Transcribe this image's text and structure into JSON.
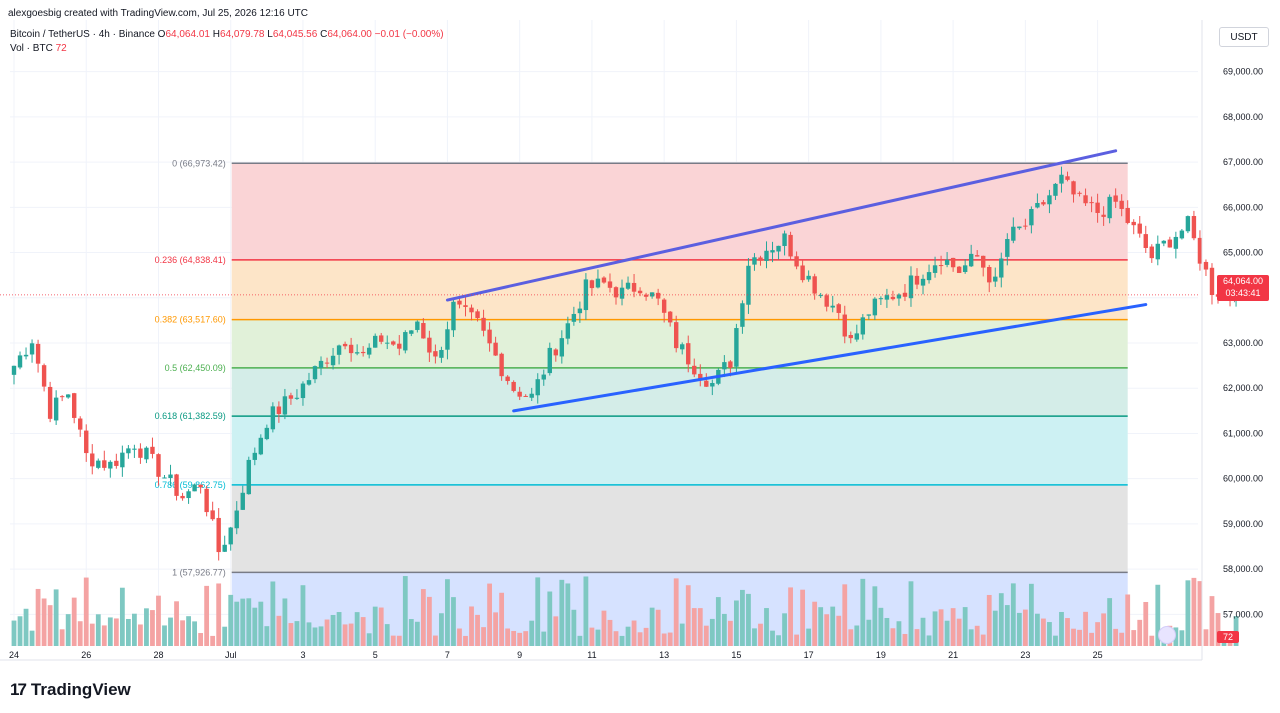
{
  "header": {
    "credit": "alexgoesbig created with TradingView.com, Jul 25, 2026 12:16 UTC"
  },
  "legend": {
    "symbol": "Bitcoin / TetherUS · 4h · Binance",
    "open_label": "O",
    "open": "64,064.01",
    "high_label": "H",
    "high": "64,079.78",
    "low_label": "L",
    "low": "64,045.56",
    "close_label": "C",
    "close": "64,064.00",
    "change": "−0.01 (−0.00%)",
    "volume_label": "Vol · BTC",
    "volume_value": "72"
  },
  "price_axis": {
    "currency": "USDT",
    "current_price": "64,064.00",
    "countdown": "03:43:41",
    "volume_tag": "72"
  },
  "branding": {
    "logo_mark": "17",
    "name": "TradingView"
  },
  "colors": {
    "up": "#26a69a",
    "down": "#ef5350",
    "vol_up": "#7ec8c2",
    "vol_down": "#f4a3a3",
    "trend_upper": "#5b5fe0",
    "trend_lower": "#2962ff",
    "accent": "#2962ff"
  },
  "chart_data": {
    "type": "candlestick",
    "y_axis": {
      "range": [
        56300,
        69700
      ],
      "ticks": [
        57000,
        58000,
        59000,
        60000,
        61000,
        62000,
        63000,
        64000,
        65000,
        66000,
        67000,
        68000,
        69000
      ],
      "tick_labels": [
        "57,000.00",
        "58,000.00",
        "59,000.00",
        "60,000.00",
        "61,000.00",
        "62,000.00",
        "63,000.00",
        "64,000.00",
        "65,000.00",
        "66,000.00",
        "67,000.00",
        "68,000.00",
        "69,000.00"
      ]
    },
    "x_axis": {
      "labels": [
        "24",
        "26",
        "28",
        "Jul",
        "3",
        "5",
        "7",
        "9",
        "11",
        "13",
        "15",
        "17",
        "19",
        "21",
        "23",
        "25"
      ],
      "label_bars": [
        0,
        12,
        24,
        36,
        48,
        60,
        72,
        84,
        96,
        108,
        120,
        132,
        144,
        156,
        168,
        180
      ]
    },
    "fibonacci": {
      "start_bar": 36,
      "end_bar": 185,
      "levels": [
        {
          "ratio": "0",
          "price": 66973.42,
          "label": "0 (66,973.42)",
          "color": "#787b86",
          "fill": "#fad4d6"
        },
        {
          "ratio": "0.236",
          "price": 64838.41,
          "label": "0.236 (64,838.41)",
          "color": "#f23645",
          "fill": "#fde5c8"
        },
        {
          "ratio": "0.382",
          "price": 63517.6,
          "label": "0.382 (63,517.60)",
          "color": "#ff9800",
          "fill": "#e1f1d9"
        },
        {
          "ratio": "0.5",
          "price": 62450.09,
          "label": "0.5 (62,450.09)",
          "color": "#4caf50",
          "fill": "#d4ede8"
        },
        {
          "ratio": "0.618",
          "price": 61382.59,
          "label": "0.618 (61,382.59)",
          "color": "#089981",
          "fill": "#cdf1f3"
        },
        {
          "ratio": "0.786",
          "price": 59862.75,
          "label": "0.786 (59,862.75)",
          "color": "#00bcd4",
          "fill": "#e3e3e3"
        },
        {
          "ratio": "1",
          "price": 57926.77,
          "label": "1 (57,926.77)",
          "color": "#787b86",
          "fill": "#d6e2ff"
        }
      ]
    },
    "trendlines": [
      {
        "name": "upper",
        "from": {
          "bar": 72,
          "price": 63950
        },
        "to": {
          "bar": 183,
          "price": 67250
        }
      },
      {
        "name": "lower",
        "from": {
          "bar": 83,
          "price": 61500
        },
        "to": {
          "bar": 188,
          "price": 63850
        }
      }
    ],
    "anchors": [
      {
        "bar": 0,
        "price": 62500
      },
      {
        "bar": 3,
        "price": 63100
      },
      {
        "bar": 6,
        "price": 61500
      },
      {
        "bar": 9,
        "price": 61900
      },
      {
        "bar": 12,
        "price": 60500
      },
      {
        "bar": 16,
        "price": 60300
      },
      {
        "bar": 20,
        "price": 60800
      },
      {
        "bar": 24,
        "price": 60200
      },
      {
        "bar": 28,
        "price": 59600
      },
      {
        "bar": 31,
        "price": 59900
      },
      {
        "bar": 34,
        "price": 58400
      },
      {
        "bar": 36,
        "price": 58900
      },
      {
        "bar": 39,
        "price": 60300
      },
      {
        "bar": 42,
        "price": 61300
      },
      {
        "bar": 47,
        "price": 61900
      },
      {
        "bar": 52,
        "price": 62700
      },
      {
        "bar": 55,
        "price": 63100
      },
      {
        "bar": 58,
        "price": 62700
      },
      {
        "bar": 61,
        "price": 63100
      },
      {
        "bar": 64,
        "price": 62900
      },
      {
        "bar": 67,
        "price": 63500
      },
      {
        "bar": 70,
        "price": 62600
      },
      {
        "bar": 73,
        "price": 63800
      },
      {
        "bar": 77,
        "price": 63400
      },
      {
        "bar": 80,
        "price": 62700
      },
      {
        "bar": 83,
        "price": 62000
      },
      {
        "bar": 86,
        "price": 61800
      },
      {
        "bar": 89,
        "price": 62700
      },
      {
        "bar": 92,
        "price": 63400
      },
      {
        "bar": 95,
        "price": 64200
      },
      {
        "bar": 98,
        "price": 64300
      },
      {
        "bar": 101,
        "price": 64100
      },
      {
        "bar": 104,
        "price": 64300
      },
      {
        "bar": 107,
        "price": 63900
      },
      {
        "bar": 110,
        "price": 63000
      },
      {
        "bar": 113,
        "price": 62500
      },
      {
        "bar": 116,
        "price": 62100
      },
      {
        "bar": 119,
        "price": 62600
      },
      {
        "bar": 122,
        "price": 64800
      },
      {
        "bar": 125,
        "price": 65100
      },
      {
        "bar": 128,
        "price": 65300
      },
      {
        "bar": 131,
        "price": 64600
      },
      {
        "bar": 134,
        "price": 64100
      },
      {
        "bar": 137,
        "price": 63700
      },
      {
        "bar": 139,
        "price": 63000
      },
      {
        "bar": 142,
        "price": 63700
      },
      {
        "bar": 145,
        "price": 64000
      },
      {
        "bar": 148,
        "price": 64200
      },
      {
        "bar": 151,
        "price": 64600
      },
      {
        "bar": 154,
        "price": 64900
      },
      {
        "bar": 157,
        "price": 64600
      },
      {
        "bar": 160,
        "price": 64900
      },
      {
        "bar": 163,
        "price": 64300
      },
      {
        "bar": 165,
        "price": 65300
      },
      {
        "bar": 168,
        "price": 65600
      },
      {
        "bar": 171,
        "price": 66100
      },
      {
        "bar": 174,
        "price": 66600
      },
      {
        "bar": 177,
        "price": 66100
      },
      {
        "bar": 180,
        "price": 65900
      },
      {
        "bar": 183,
        "price": 66100
      },
      {
        "bar": 186,
        "price": 65500
      },
      {
        "bar": 189,
        "price": 64900
      },
      {
        "bar": 192,
        "price": 65300
      },
      {
        "bar": 195,
        "price": 65600
      },
      {
        "bar": 197,
        "price": 64900
      },
      {
        "bar": 199,
        "price": 64200
      },
      {
        "bar": 201,
        "price": 64100
      },
      {
        "bar": 203,
        "price": 64064
      }
    ],
    "volume_scale_max": 90
  }
}
